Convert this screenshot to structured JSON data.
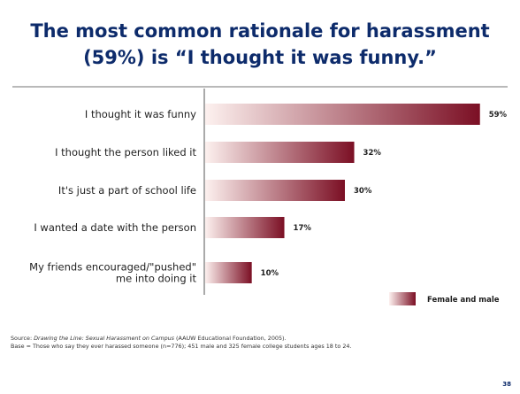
{
  "slide": {
    "title_line1": "The most common rationale for harassment",
    "title_line2": "(59%) is “I thought it was funny.”",
    "page_number": "38"
  },
  "source": {
    "prefix": "Source: ",
    "title": "Drawing the Line: Sexual Harassment on Campus",
    "suffix": " (AAUW Educational Foundation, 2005).",
    "base": "Base = Those who say they ever harassed someone (n=776); 451 male and 325 female college students ages 18 to 24."
  },
  "colors": {
    "bar_start": "#fdf1ef",
    "bar_end": "#7b0f24",
    "title": "#0d2b6b"
  },
  "chart_data": {
    "type": "bar",
    "orientation": "horizontal",
    "categories": [
      "I thought it was funny",
      "I thought the person liked it",
      "It's just a part of school life",
      "I wanted a date with the person",
      "My friends encouraged/\"pushed\" me into doing it"
    ],
    "category_lines": [
      [
        "I thought it was funny"
      ],
      [
        "I thought the person liked it"
      ],
      [
        "It's just a part of school life"
      ],
      [
        "I wanted a date with the person"
      ],
      [
        "My friends encouraged/\"pushed\"",
        "me into doing it"
      ]
    ],
    "series": [
      {
        "name": "Female and male",
        "values": [
          59,
          32,
          30,
          17,
          10
        ]
      }
    ],
    "value_labels": [
      "59%",
      "32%",
      "30%",
      "17%",
      "10%"
    ],
    "xlim": [
      0,
      60
    ],
    "legend_position": "bottom-right",
    "grid": false
  }
}
